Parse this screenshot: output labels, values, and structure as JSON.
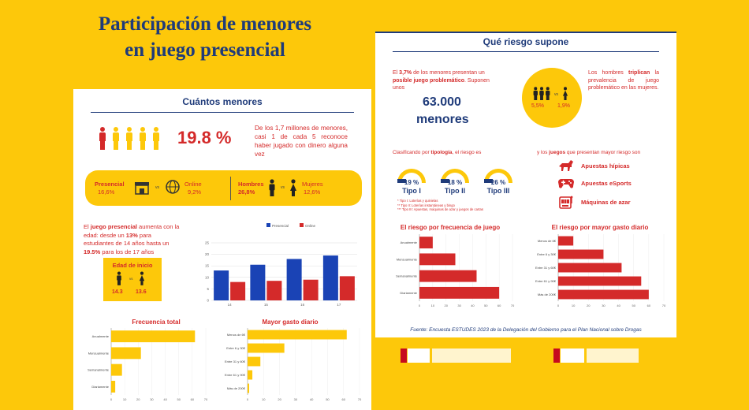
{
  "title": {
    "line1": "Participación de menores",
    "line2": "en juego presencial"
  },
  "colors": {
    "background": "#fdc80a",
    "navy": "#1f3b7a",
    "red": "#d42a2a",
    "blue": "#1a43b5"
  },
  "left": {
    "heading": "Cuántos menores",
    "percent": "19.8 %",
    "intro": "De los 1,7 millones de menores, casi 1 de cada 5 reconoce haber jugado con dinero alguna vez",
    "presencial": {
      "label": "Presencial",
      "value": "16,6%"
    },
    "online": {
      "label": "Online",
      "value": "9,2%"
    },
    "vs": "vs",
    "hombres": {
      "label": "Hombres",
      "value": "26,8%"
    },
    "mujeres": {
      "label": "Mujeres",
      "value": "12,6%"
    },
    "age_text": {
      "p1": "El ",
      "b1": "juego presencial",
      "p2": " aumenta con la edad: desde un ",
      "b2": "13%",
      "p3": " para estudiantes de 14 años hasta un ",
      "b3": "19.5%",
      "p4": " para los de 17 años"
    },
    "edad_inicio": {
      "label": "Edad de inicio",
      "male": "14.3",
      "female": "13.6"
    },
    "icons": {
      "person": "person-icon",
      "store": "store-icon",
      "globe": "globe-icon",
      "male": "male-icon",
      "female": "female-icon"
    }
  },
  "right": {
    "heading": "Qué riesgo supone",
    "risk_text": {
      "p1": "El ",
      "b1": "3,7%",
      "p2": " de los menores presentan un ",
      "b2": "posible juego problemático",
      "p3": ". Suponen unos"
    },
    "count": "63.000",
    "count_unit": "menores",
    "men_value": "5,5%",
    "women_value": "1,9%",
    "vs": "vs",
    "men_text": {
      "p1": "Los hombres ",
      "b1": "triplican",
      "p2": " la prevalencia de juego problemático en las mujeres."
    },
    "typology_text": {
      "p1": "Clasificando por ",
      "b1": "tipología",
      "p2": ", el riesgo es"
    },
    "games_text": {
      "p1": "y los ",
      "b1": "juegos",
      "p2": " que presentan mayor riesgo son"
    },
    "tipos": [
      {
        "value": "19 %",
        "label": "Tipo I"
      },
      {
        "value": "18 %",
        "label": "Tipo II"
      },
      {
        "value": "26 %",
        "label": "Tipo III"
      }
    ],
    "notes": [
      "* Tipo I: Loterías y quinielas",
      "** Tipo II: Loterías instantáneas y bingo",
      "*** Tipo III: Apuestas, máquinas de azar y juegos de cartas"
    ],
    "games": [
      {
        "label": "Apuestas hípicas",
        "icon": "horse-icon"
      },
      {
        "label": "Apuestas eSports",
        "icon": "gamepad-icon"
      },
      {
        "label": "Máquinas de azar",
        "icon": "slot-machine-icon"
      }
    ],
    "source": "Fuente: Encuesta ESTUDES 2023 de la Delegación del Gobierno para el Plan Nacional sobre Drogas"
  },
  "chart_data": [
    {
      "type": "bar",
      "legend": [
        "Presencial",
        "Online"
      ],
      "categories": [
        "14",
        "15",
        "16",
        "17"
      ],
      "series": [
        {
          "name": "Presencial",
          "values": [
            13,
            15.5,
            18,
            19.5
          ]
        },
        {
          "name": "Online",
          "values": [
            8,
            8.5,
            9,
            10.5
          ]
        }
      ],
      "ylim": [
        0,
        25
      ],
      "yticks": [
        "0",
        "5",
        "10",
        "15",
        "20",
        "25"
      ]
    },
    {
      "type": "bar",
      "orientation": "horizontal",
      "title": "Frecuencia total",
      "categories": [
        "Anualmente",
        "Mensualmente",
        "Semanalmente",
        "Diariamente"
      ],
      "values": [
        62,
        22,
        8,
        3
      ],
      "xlim": [
        0,
        70
      ],
      "xticks": [
        "0",
        "10",
        "20",
        "30",
        "40",
        "50",
        "60",
        "70"
      ]
    },
    {
      "type": "bar",
      "orientation": "horizontal",
      "title": "Mayor gasto diario",
      "categories": [
        "Menos de 6€",
        "Entre 6 y 30€",
        "Entre 31 y 60€",
        "Entre 61 y 90€",
        "Más de 200€"
      ],
      "values": [
        62,
        23,
        8,
        3,
        1
      ],
      "xlim": [
        0,
        70
      ],
      "xticks": [
        "0",
        "10",
        "20",
        "30",
        "40",
        "50",
        "60",
        "70"
      ]
    },
    {
      "type": "bar",
      "orientation": "horizontal",
      "title": "El riesgo por frecuencia de juego",
      "categories": [
        "Anualmente",
        "Mensualmente",
        "Semanalmente",
        "Diariamente"
      ],
      "values": [
        10,
        27,
        43,
        60
      ],
      "xlim": [
        0,
        70
      ],
      "xticks": [
        "0",
        "10",
        "20",
        "30",
        "40",
        "50",
        "60",
        "70"
      ]
    },
    {
      "type": "bar",
      "orientation": "horizontal",
      "title": "El riesgo por mayor gasto diario",
      "categories": [
        "Menos de 6€",
        "Entre 6 y 30€",
        "Entre 31 y 60€",
        "Entre 61 y 90€",
        "Más de 200€"
      ],
      "values": [
        10,
        30,
        42,
        55,
        60
      ],
      "xlim": [
        0,
        70
      ],
      "xticks": [
        "0",
        "10",
        "20",
        "30",
        "40",
        "50",
        "60",
        "70"
      ]
    }
  ]
}
